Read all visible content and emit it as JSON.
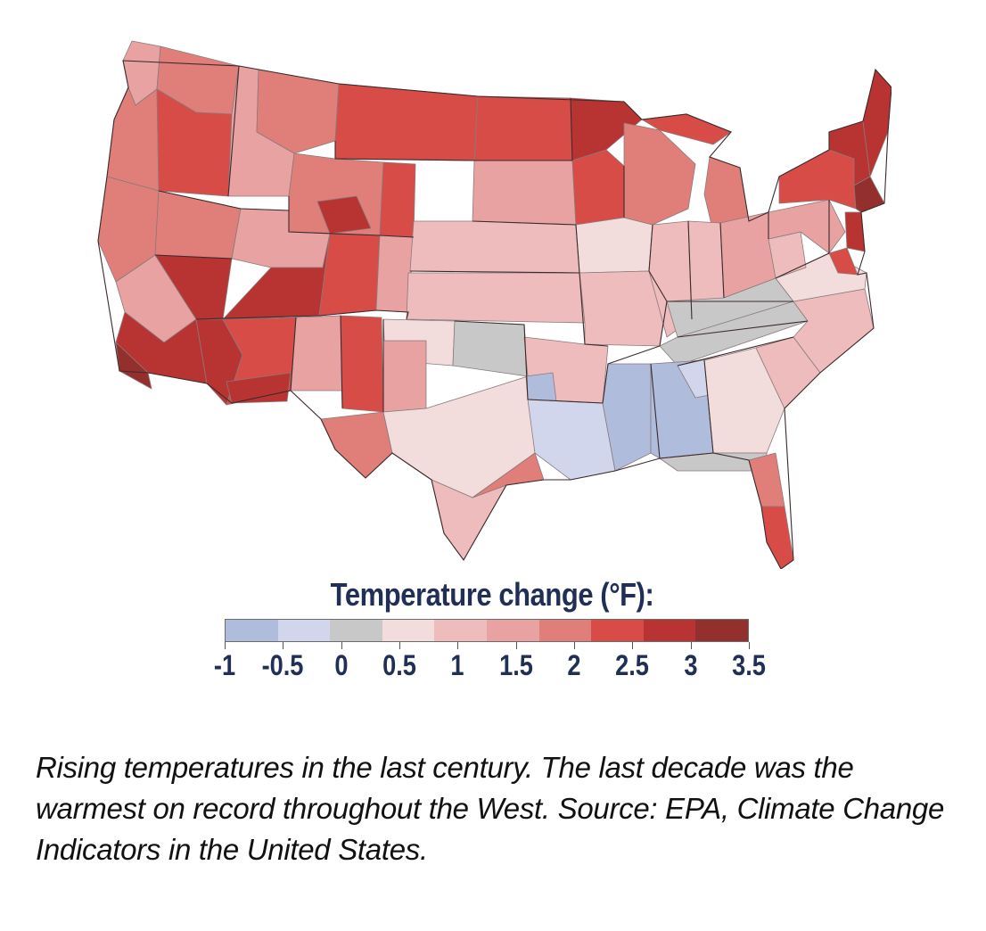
{
  "map": {
    "title": "Temperature change (°F):",
    "legend": {
      "bins": [
        "#b0bcdc",
        "#d2d6ec",
        "#c8c8c8",
        "#f2dcdc",
        "#eebcbc",
        "#e8a2a2",
        "#e07e7a",
        "#d84c48",
        "#b83432",
        "#93302e"
      ],
      "tick_labels": [
        "-1",
        "-0.5",
        "0",
        "0.5",
        "1",
        "1.5",
        "2",
        "2.5",
        "3",
        "3.5"
      ]
    },
    "colors": {
      "neg1": "#b0bcdc",
      "neg05": "#d2d6ec",
      "zero": "#c8c8c8",
      "p05": "#f2dcdc",
      "p1": "#eebcbc",
      "p15": "#e8a2a2",
      "p2": "#e07e7a",
      "p25": "#d84c48",
      "p3": "#b83432",
      "p35": "#93302e"
    }
  },
  "caption": "Rising temperatures in the last century. The last decade was the warmest on record throughout the West. Source: EPA, Climate Change Indicators in the United States."
}
